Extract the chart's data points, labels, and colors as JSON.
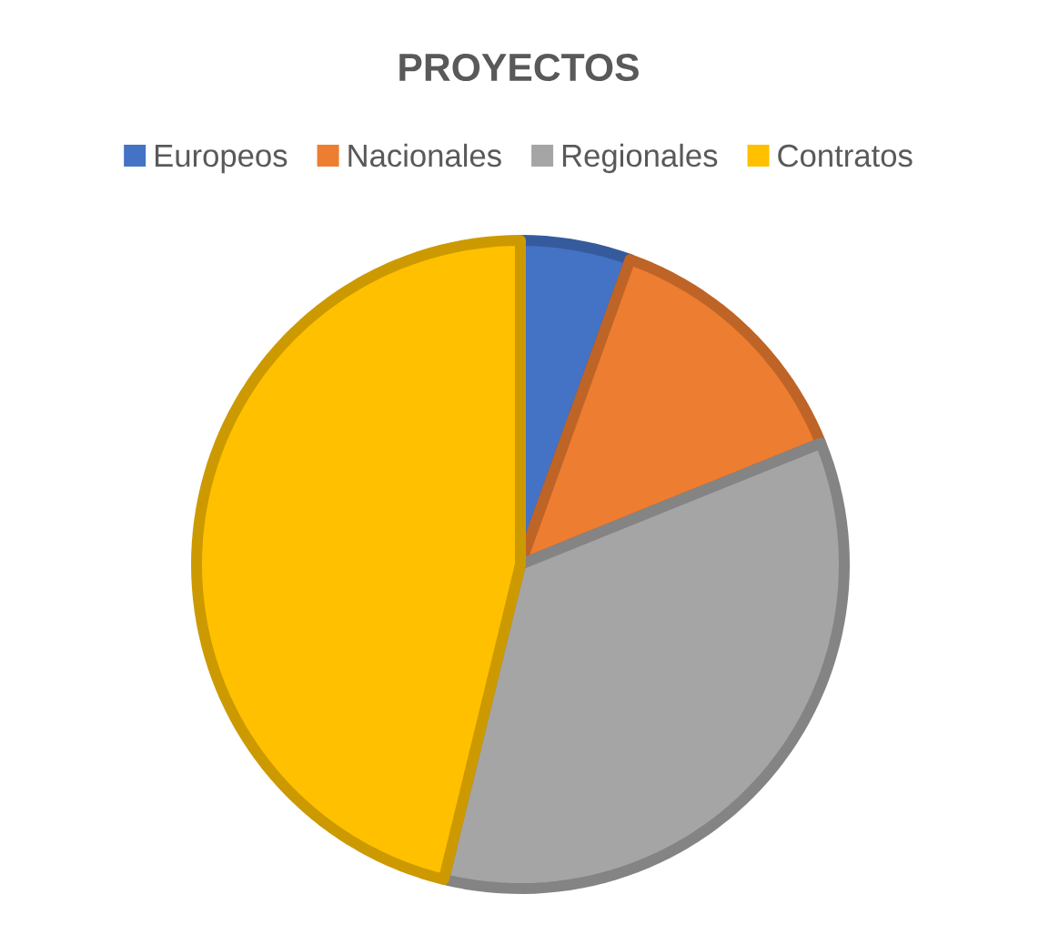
{
  "chart_data": {
    "type": "pie",
    "title": "PROYECTOS",
    "categories": [
      "Europeos",
      "Nacionales",
      "Regionales",
      "Contratos"
    ],
    "values": [
      5.5,
      13.4,
      34.9,
      46.2
    ],
    "colors": [
      "#4472c4",
      "#ed7d31",
      "#a5a5a5",
      "#ffc000"
    ],
    "legend": "top"
  }
}
